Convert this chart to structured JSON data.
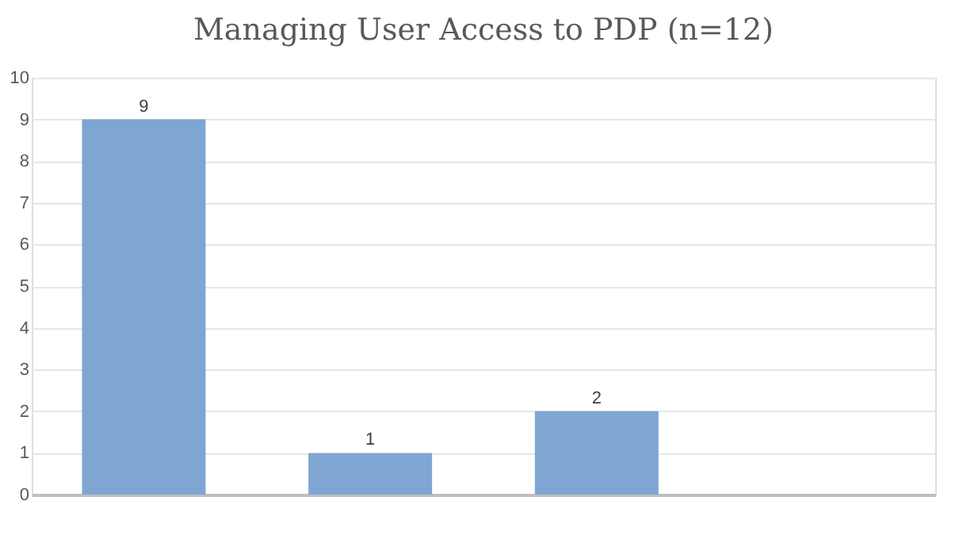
{
  "chart_data": {
    "type": "bar",
    "title": "Managing User Access to PDP (n=12)",
    "categories": [
      null,
      null,
      null,
      null
    ],
    "values": [
      9,
      1,
      2,
      0
    ],
    "value_labels": [
      "9",
      "1",
      "2",
      null
    ],
    "color": "#7fa6d2",
    "ylim": [
      0,
      10
    ],
    "yticks": [
      0,
      1,
      2,
      3,
      4,
      5,
      6,
      7,
      8,
      9,
      10
    ],
    "grid": "y"
  }
}
